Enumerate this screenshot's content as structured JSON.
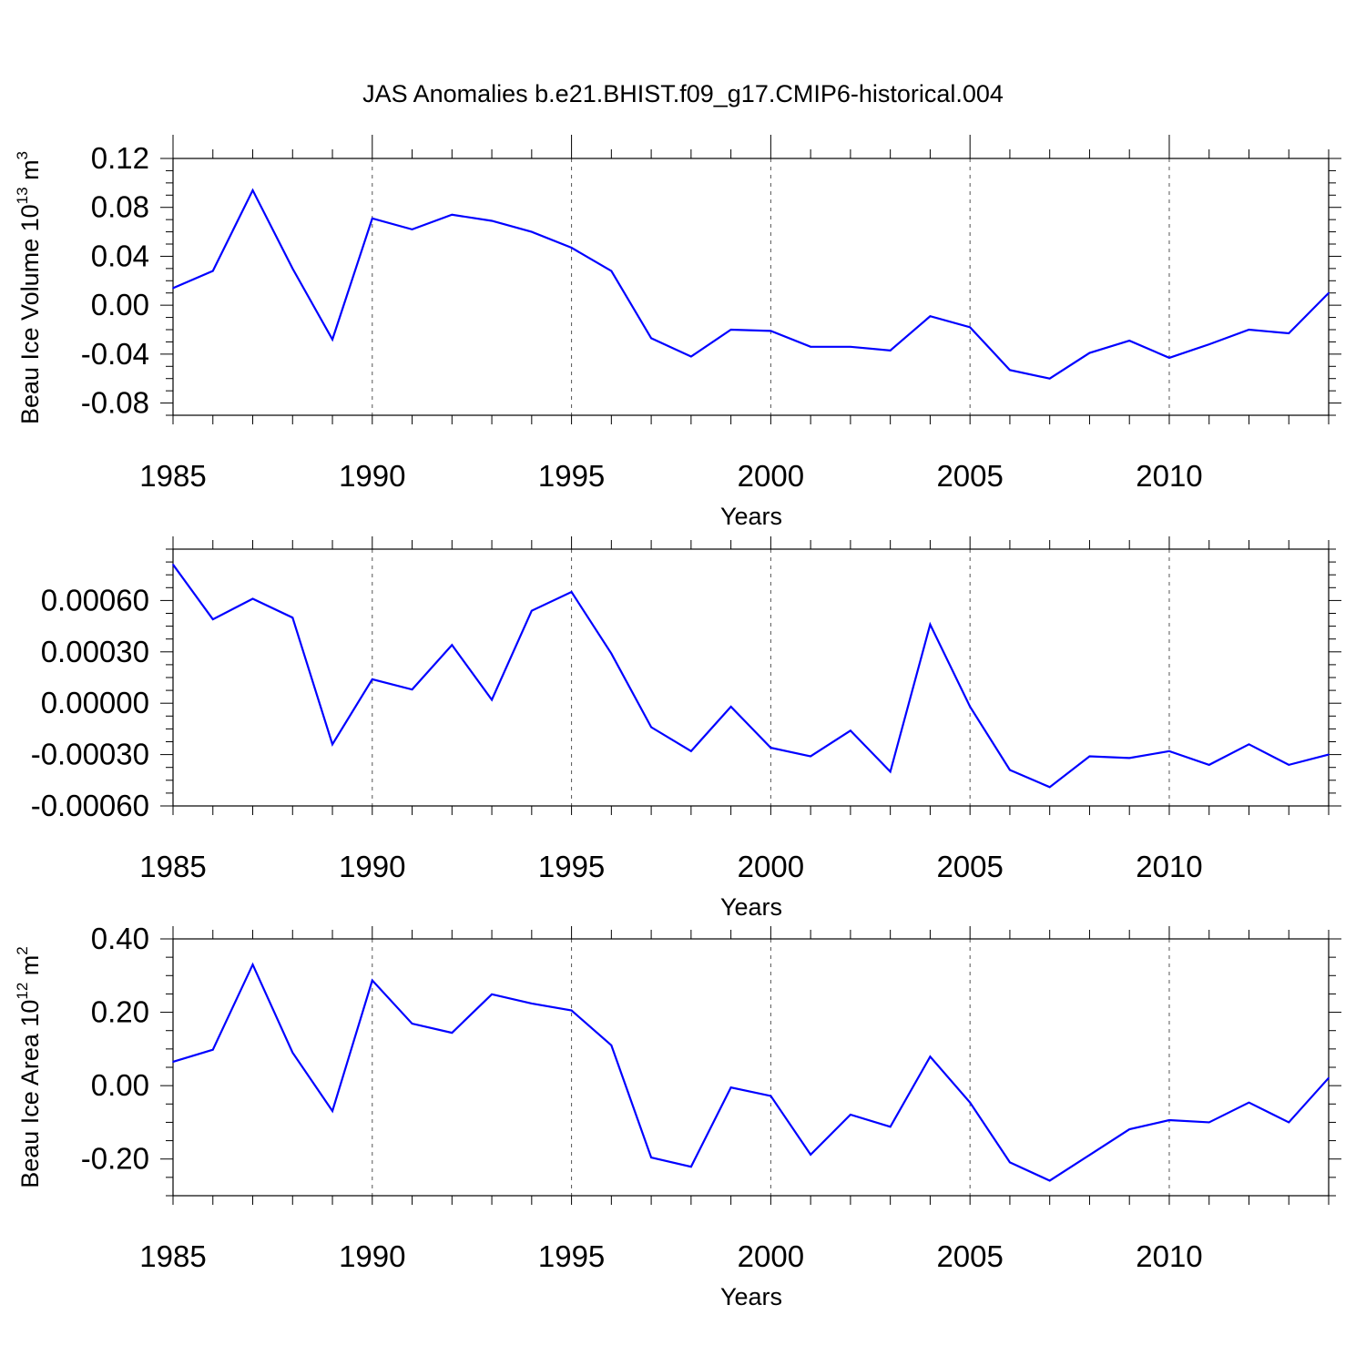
{
  "figure": {
    "title": "JAS Anomalies b.e21.BHIST.f09_g17.CMIP6-historical.004",
    "line_color": "#0000ff"
  },
  "chart_data": [
    {
      "type": "line",
      "title": "JAS Anomalies b.e21.BHIST.f09_g17.CMIP6-historical.004",
      "xlabel": "Years",
      "ylabel": {
        "base": "Beau Ice Volume 10",
        "sup1": "13",
        "mid": " m",
        "sup2": "3"
      },
      "xlim": [
        1985,
        2014
      ],
      "ylim": [
        -0.09,
        0.12
      ],
      "xticks": [
        1985,
        1990,
        1995,
        2000,
        2005,
        2010
      ],
      "xtick_labels": [
        "1985",
        "1990",
        "1995",
        "2000",
        "2005",
        "2010"
      ],
      "yticks": [
        0.12,
        0.08,
        0.04,
        0.0,
        -0.04,
        -0.08
      ],
      "ytick_labels": [
        "0.12",
        "0.08",
        "0.04",
        "0.00",
        "-0.04",
        "-0.08"
      ],
      "grid": "vertical dashed at major x ticks",
      "x": [
        1985,
        1986,
        1987,
        1988,
        1989,
        1990,
        1991,
        1992,
        1993,
        1994,
        1995,
        1996,
        1997,
        1998,
        1999,
        2000,
        2001,
        2002,
        2003,
        2004,
        2005,
        2006,
        2007,
        2008,
        2009,
        2010,
        2011,
        2012,
        2013,
        2014
      ],
      "series": [
        {
          "values": [
            0.014,
            0.028,
            0.094,
            0.03,
            -0.028,
            0.071,
            0.062,
            0.074,
            0.069,
            0.06,
            0.047,
            0.028,
            -0.027,
            -0.042,
            -0.02,
            -0.021,
            -0.034,
            -0.034,
            -0.037,
            -0.009,
            -0.018,
            -0.053,
            -0.06,
            -0.039,
            -0.029,
            -0.043,
            -0.032,
            -0.02,
            -0.023,
            0.01
          ]
        }
      ]
    },
    {
      "type": "line",
      "xlabel": "Years",
      "xlim": [
        1985,
        2014
      ],
      "ylim": [
        -0.0006,
        0.0009
      ],
      "xticks": [
        1985,
        1990,
        1995,
        2000,
        2005,
        2010
      ],
      "xtick_labels": [
        "1985",
        "1990",
        "1995",
        "2000",
        "2005",
        "2010"
      ],
      "yticks": [
        0.0006,
        0.0003,
        0.0,
        -0.0003,
        -0.0006
      ],
      "ytick_labels": [
        "0.00060",
        "0.00030",
        "0.00000",
        "-0.00030",
        "-0.00060"
      ],
      "grid": "vertical dashed at major x ticks",
      "x": [
        1985,
        1986,
        1987,
        1988,
        1989,
        1990,
        1991,
        1992,
        1993,
        1994,
        1995,
        1996,
        1997,
        1998,
        1999,
        2000,
        2001,
        2002,
        2003,
        2004,
        2005,
        2006,
        2007,
        2008,
        2009,
        2010,
        2011,
        2012,
        2013,
        2014
      ],
      "series": [
        {
          "values": [
            0.00081,
            0.00049,
            0.00061,
            0.0005,
            -0.00024,
            0.00014,
            8e-05,
            0.00034,
            2e-05,
            0.00054,
            0.00065,
            0.00029,
            -0.00014,
            -0.00028,
            -2e-05,
            -0.00026,
            -0.00031,
            -0.00016,
            -0.0004,
            0.00046,
            -2e-05,
            -0.00039,
            -0.00049,
            -0.00031,
            -0.00032,
            -0.00028,
            -0.00036,
            -0.00024,
            -0.00036,
            -0.0003
          ]
        }
      ]
    },
    {
      "type": "line",
      "xlabel": "Years",
      "ylabel": {
        "base": "Beau Ice Area 10",
        "sup1": "12",
        "mid": " m",
        "sup2": "2"
      },
      "xlim": [
        1985,
        2014
      ],
      "ylim": [
        -0.3,
        0.4
      ],
      "xticks": [
        1985,
        1990,
        1995,
        2000,
        2005,
        2010
      ],
      "xtick_labels": [
        "1985",
        "1990",
        "1995",
        "2000",
        "2005",
        "2010"
      ],
      "yticks": [
        0.4,
        0.2,
        0.0,
        -0.2
      ],
      "ytick_labels": [
        "0.40",
        "0.20",
        "0.00",
        "-0.20"
      ],
      "grid": "vertical dashed at major x ticks",
      "x": [
        1985,
        1986,
        1987,
        1988,
        1989,
        1990,
        1991,
        1992,
        1993,
        1994,
        1995,
        1996,
        1997,
        1998,
        1999,
        2000,
        2001,
        2002,
        2003,
        2004,
        2005,
        2006,
        2007,
        2008,
        2009,
        2010,
        2011,
        2012,
        2013,
        2014
      ],
      "series": [
        {
          "values": [
            0.065,
            0.098,
            0.33,
            0.09,
            -0.069,
            0.287,
            0.169,
            0.144,
            0.249,
            0.224,
            0.205,
            0.11,
            -0.196,
            -0.221,
            -0.005,
            -0.028,
            -0.188,
            -0.079,
            -0.112,
            0.079,
            -0.046,
            -0.209,
            -0.259,
            -0.189,
            -0.119,
            -0.094,
            -0.1,
            -0.046,
            -0.1,
            0.021
          ]
        }
      ]
    }
  ]
}
